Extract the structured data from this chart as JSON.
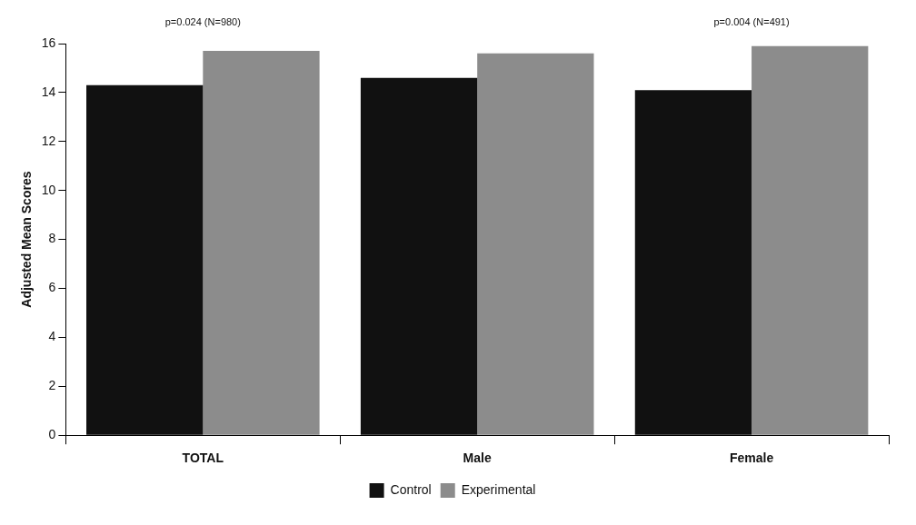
{
  "chart_data": {
    "type": "bar",
    "ylabel": "Adjusted Mean Scores",
    "categories": [
      "TOTAL",
      "Male",
      "Female"
    ],
    "series": [
      {
        "name": "Control",
        "color": "#111111",
        "values": [
          14.3,
          14.6,
          14.1
        ]
      },
      {
        "name": "Experimental",
        "color": "#8c8c8c",
        "values": [
          15.7,
          15.6,
          15.9
        ]
      }
    ],
    "ylim": [
      0,
      16
    ],
    "yticks": [
      0,
      2,
      4,
      6,
      8,
      10,
      12,
      14,
      16
    ],
    "grid": false,
    "legend": "bottom",
    "annotations": [
      "p=0.024 (N=980)",
      "p=0.004 (N=491)"
    ]
  }
}
